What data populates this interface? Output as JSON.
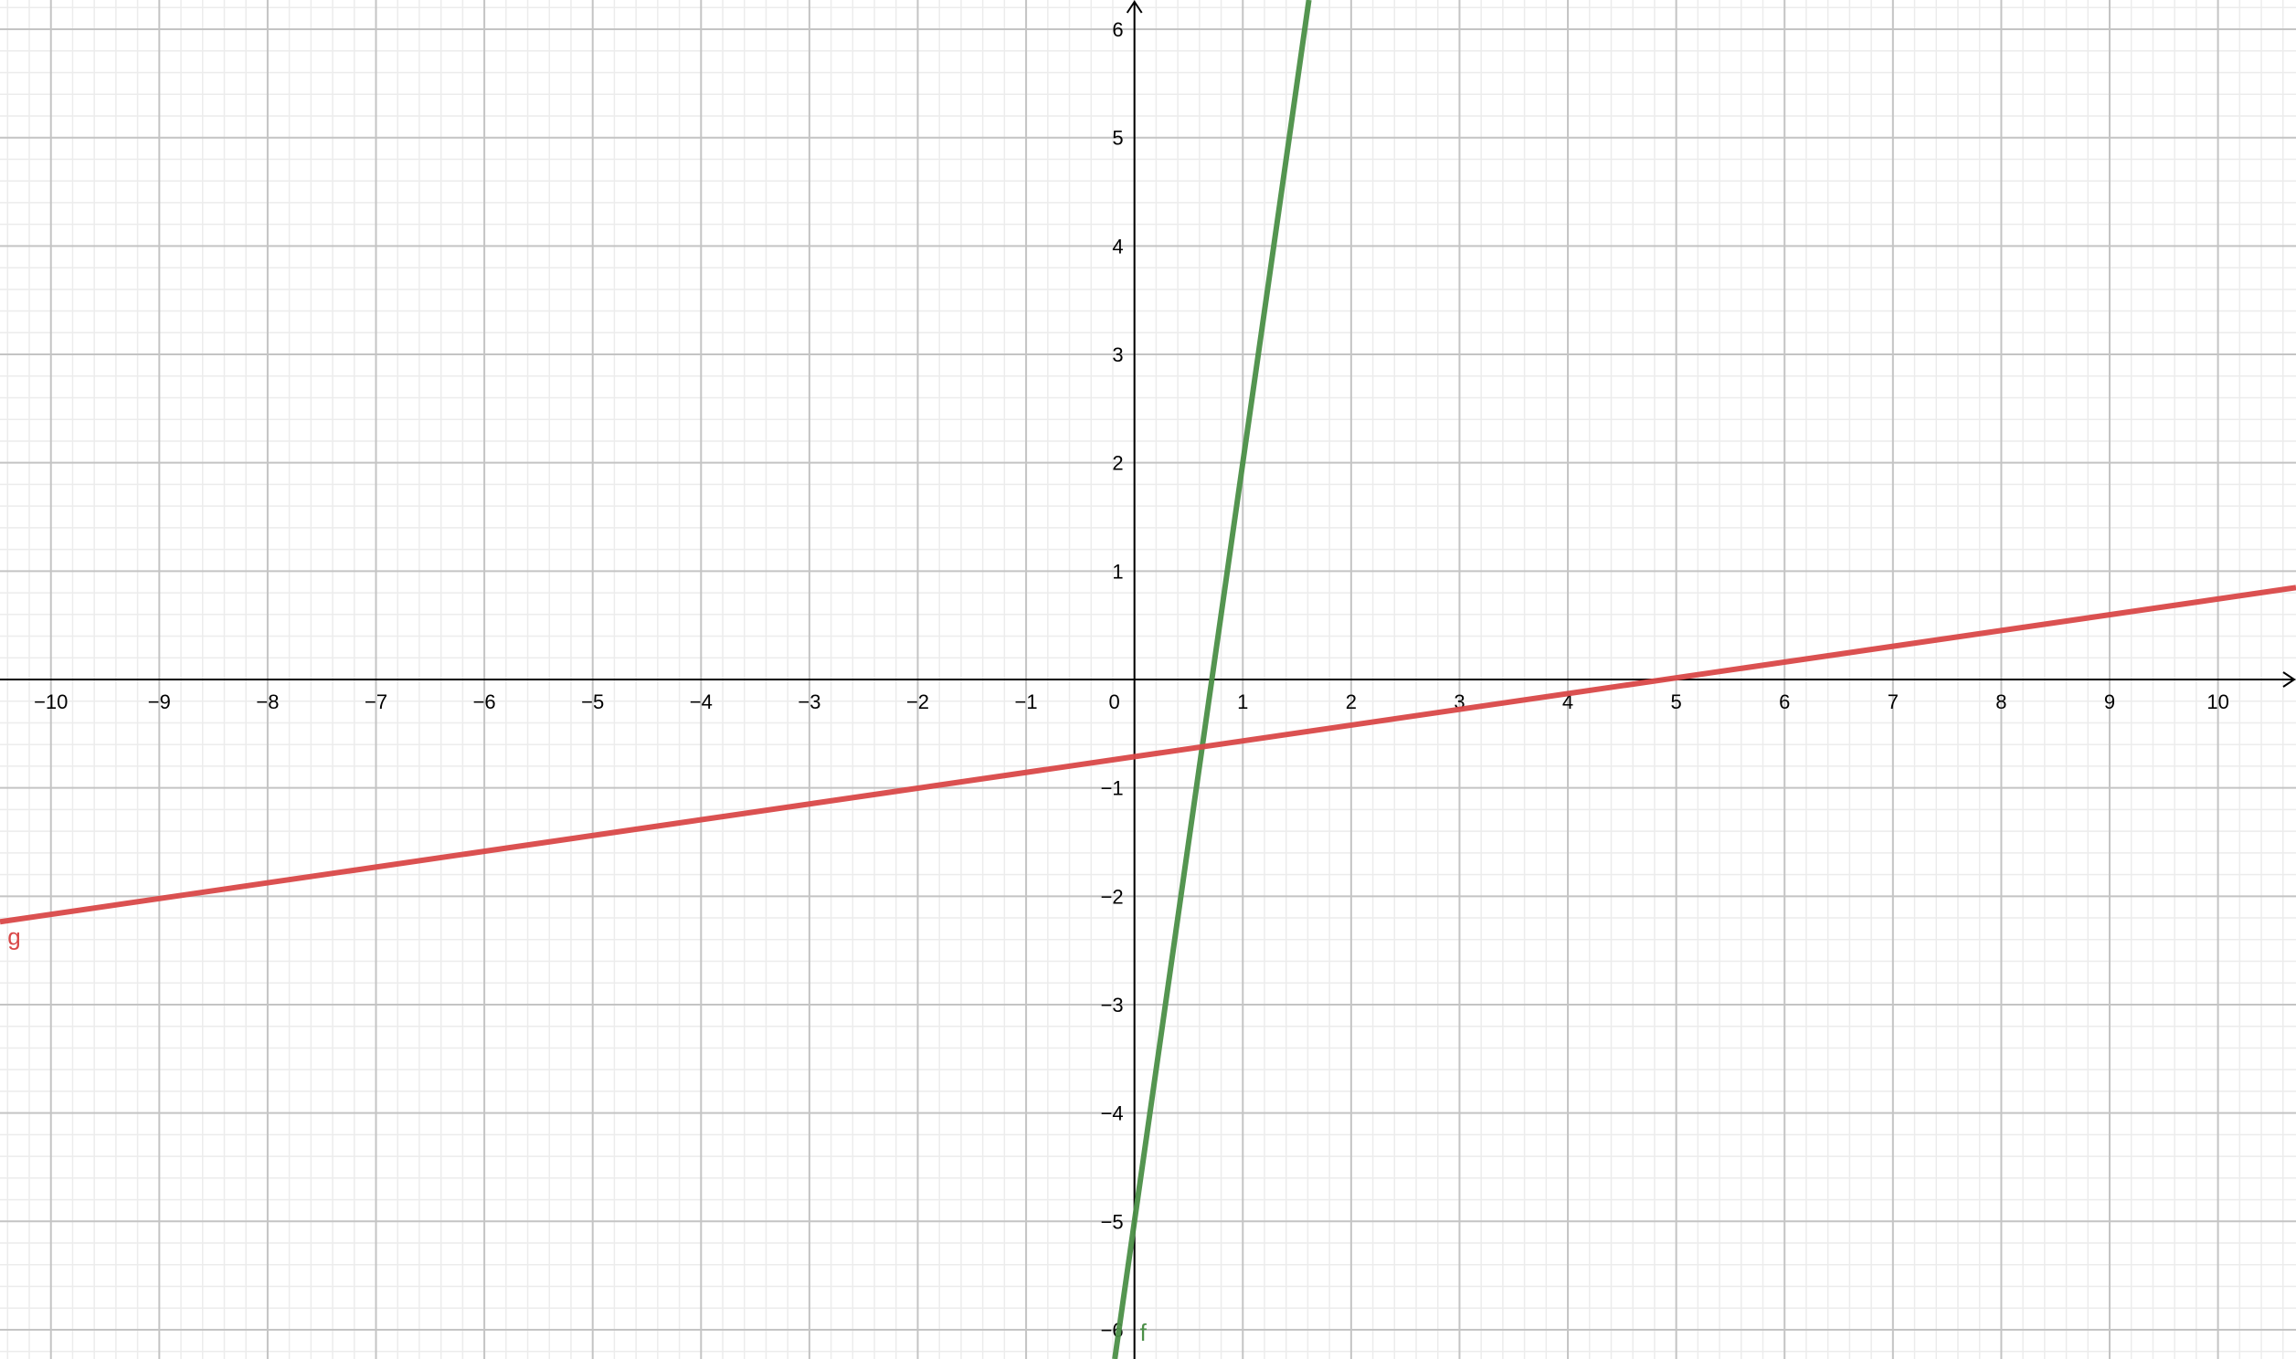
{
  "chart_data": {
    "type": "line",
    "title": "",
    "xlabel": "",
    "ylabel": "",
    "xlim": [
      -10.47,
      10.72
    ],
    "ylim": [
      -6.27,
      6.27
    ],
    "grid": true,
    "minor_grid_subdivisions": 5,
    "x_ticks": [
      -10,
      -9,
      -8,
      -7,
      -6,
      -5,
      -4,
      -3,
      -2,
      -1,
      0,
      1,
      2,
      3,
      4,
      5,
      6,
      7,
      8,
      9,
      10
    ],
    "y_ticks": [
      -6,
      -5,
      -4,
      -3,
      -2,
      -1,
      1,
      2,
      3,
      4,
      5,
      6
    ],
    "series": [
      {
        "name": "f",
        "slope": 7,
        "intercept": -5,
        "color": "#4b8f47",
        "label_at": [
          0.05,
          -6.1
        ]
      },
      {
        "name": "g",
        "slope": 0.1455,
        "intercept": -0.712,
        "color": "#d94848",
        "label_at": [
          -10.4,
          -2.45
        ]
      }
    ],
    "colors": {
      "major_grid": "#c4c4c4",
      "minor_grid": "#ececec",
      "axis": "#000000"
    }
  }
}
